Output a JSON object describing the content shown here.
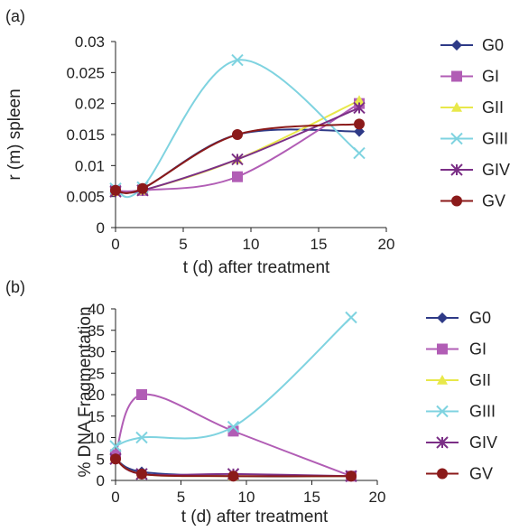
{
  "chart_data": [
    {
      "panel_label": "(a)",
      "type": "line",
      "xlabel": "t (d) after treatment",
      "ylabel": "r (m) spleen",
      "xlim": [
        0,
        20
      ],
      "ylim": [
        0,
        0.03
      ],
      "xticks": [
        "0",
        "5",
        "10",
        "15",
        "20"
      ],
      "xtick_values": [
        0,
        5,
        10,
        15,
        20
      ],
      "yticks": [
        "0",
        "0.005",
        "0.01",
        "0.015",
        "0.02",
        "0.025",
        "0.03"
      ],
      "ytick_values": [
        0,
        0.005,
        0.01,
        0.015,
        0.02,
        0.025,
        0.03
      ],
      "legend_position": "right",
      "series": [
        {
          "name": "G0",
          "color": "#2e3a87",
          "marker": "diamond",
          "x": [
            0,
            2,
            9,
            18
          ],
          "y": [
            0.006,
            0.0063,
            0.015,
            0.0155
          ]
        },
        {
          "name": "GI",
          "color": "#b15db5",
          "marker": "square",
          "x": [
            0,
            2,
            9,
            18
          ],
          "y": [
            0.006,
            0.006,
            0.0082,
            0.02
          ]
        },
        {
          "name": "GII",
          "color": "#e8e84a",
          "marker": "triangle",
          "x": [
            0,
            2,
            9,
            18
          ],
          "y": [
            0.0058,
            0.006,
            0.011,
            0.0205
          ]
        },
        {
          "name": "GIII",
          "color": "#7fd3e0",
          "marker": "x",
          "x": [
            0,
            2,
            9,
            18
          ],
          "y": [
            0.0063,
            0.0065,
            0.027,
            0.012
          ]
        },
        {
          "name": "GIV",
          "color": "#7b2f86",
          "marker": "star",
          "x": [
            0,
            2,
            9,
            18
          ],
          "y": [
            0.0058,
            0.006,
            0.011,
            0.0193
          ]
        },
        {
          "name": "GV",
          "color": "#8b1a1a",
          "marker": "circle",
          "x": [
            0,
            2,
            9,
            18
          ],
          "y": [
            0.006,
            0.0063,
            0.015,
            0.0167
          ]
        }
      ]
    },
    {
      "panel_label": "(b)",
      "type": "line",
      "xlabel": "t (d) after treatment",
      "ylabel": "% DNA Fragmentation",
      "xlim": [
        0,
        20
      ],
      "ylim": [
        0,
        40
      ],
      "xticks": [
        "0",
        "5",
        "10",
        "15",
        "20"
      ],
      "xtick_values": [
        0,
        5,
        10,
        15,
        20
      ],
      "yticks": [
        "0",
        "5",
        "10",
        "15",
        "20",
        "25",
        "30",
        "35",
        "40"
      ],
      "ytick_values": [
        0,
        5,
        10,
        15,
        20,
        25,
        30,
        35,
        40
      ],
      "legend_position": "right",
      "series": [
        {
          "name": "G0",
          "color": "#2e3a87",
          "marker": "diamond",
          "x": [
            0,
            2,
            9,
            18
          ],
          "y": [
            5,
            2,
            1,
            1
          ]
        },
        {
          "name": "GI",
          "color": "#b15db5",
          "marker": "square",
          "x": [
            0,
            2,
            9,
            18
          ],
          "y": [
            6,
            20,
            11.5,
            1
          ]
        },
        {
          "name": "GII",
          "color": "#e8e84a",
          "marker": "triangle",
          "x": [
            0,
            2,
            9,
            18
          ],
          "y": [
            5,
            1.5,
            1,
            1
          ]
        },
        {
          "name": "GIII",
          "color": "#7fd3e0",
          "marker": "x",
          "x": [
            0,
            2,
            9,
            18
          ],
          "y": [
            8,
            10,
            12.5,
            38
          ]
        },
        {
          "name": "GIV",
          "color": "#7b2f86",
          "marker": "star",
          "x": [
            0,
            2,
            9,
            18
          ],
          "y": [
            5,
            1.5,
            1.5,
            1
          ]
        },
        {
          "name": "GV",
          "color": "#8b1a1a",
          "marker": "circle",
          "x": [
            0,
            2,
            9,
            18
          ],
          "y": [
            5,
            1.5,
            1,
            1
          ]
        }
      ]
    }
  ]
}
